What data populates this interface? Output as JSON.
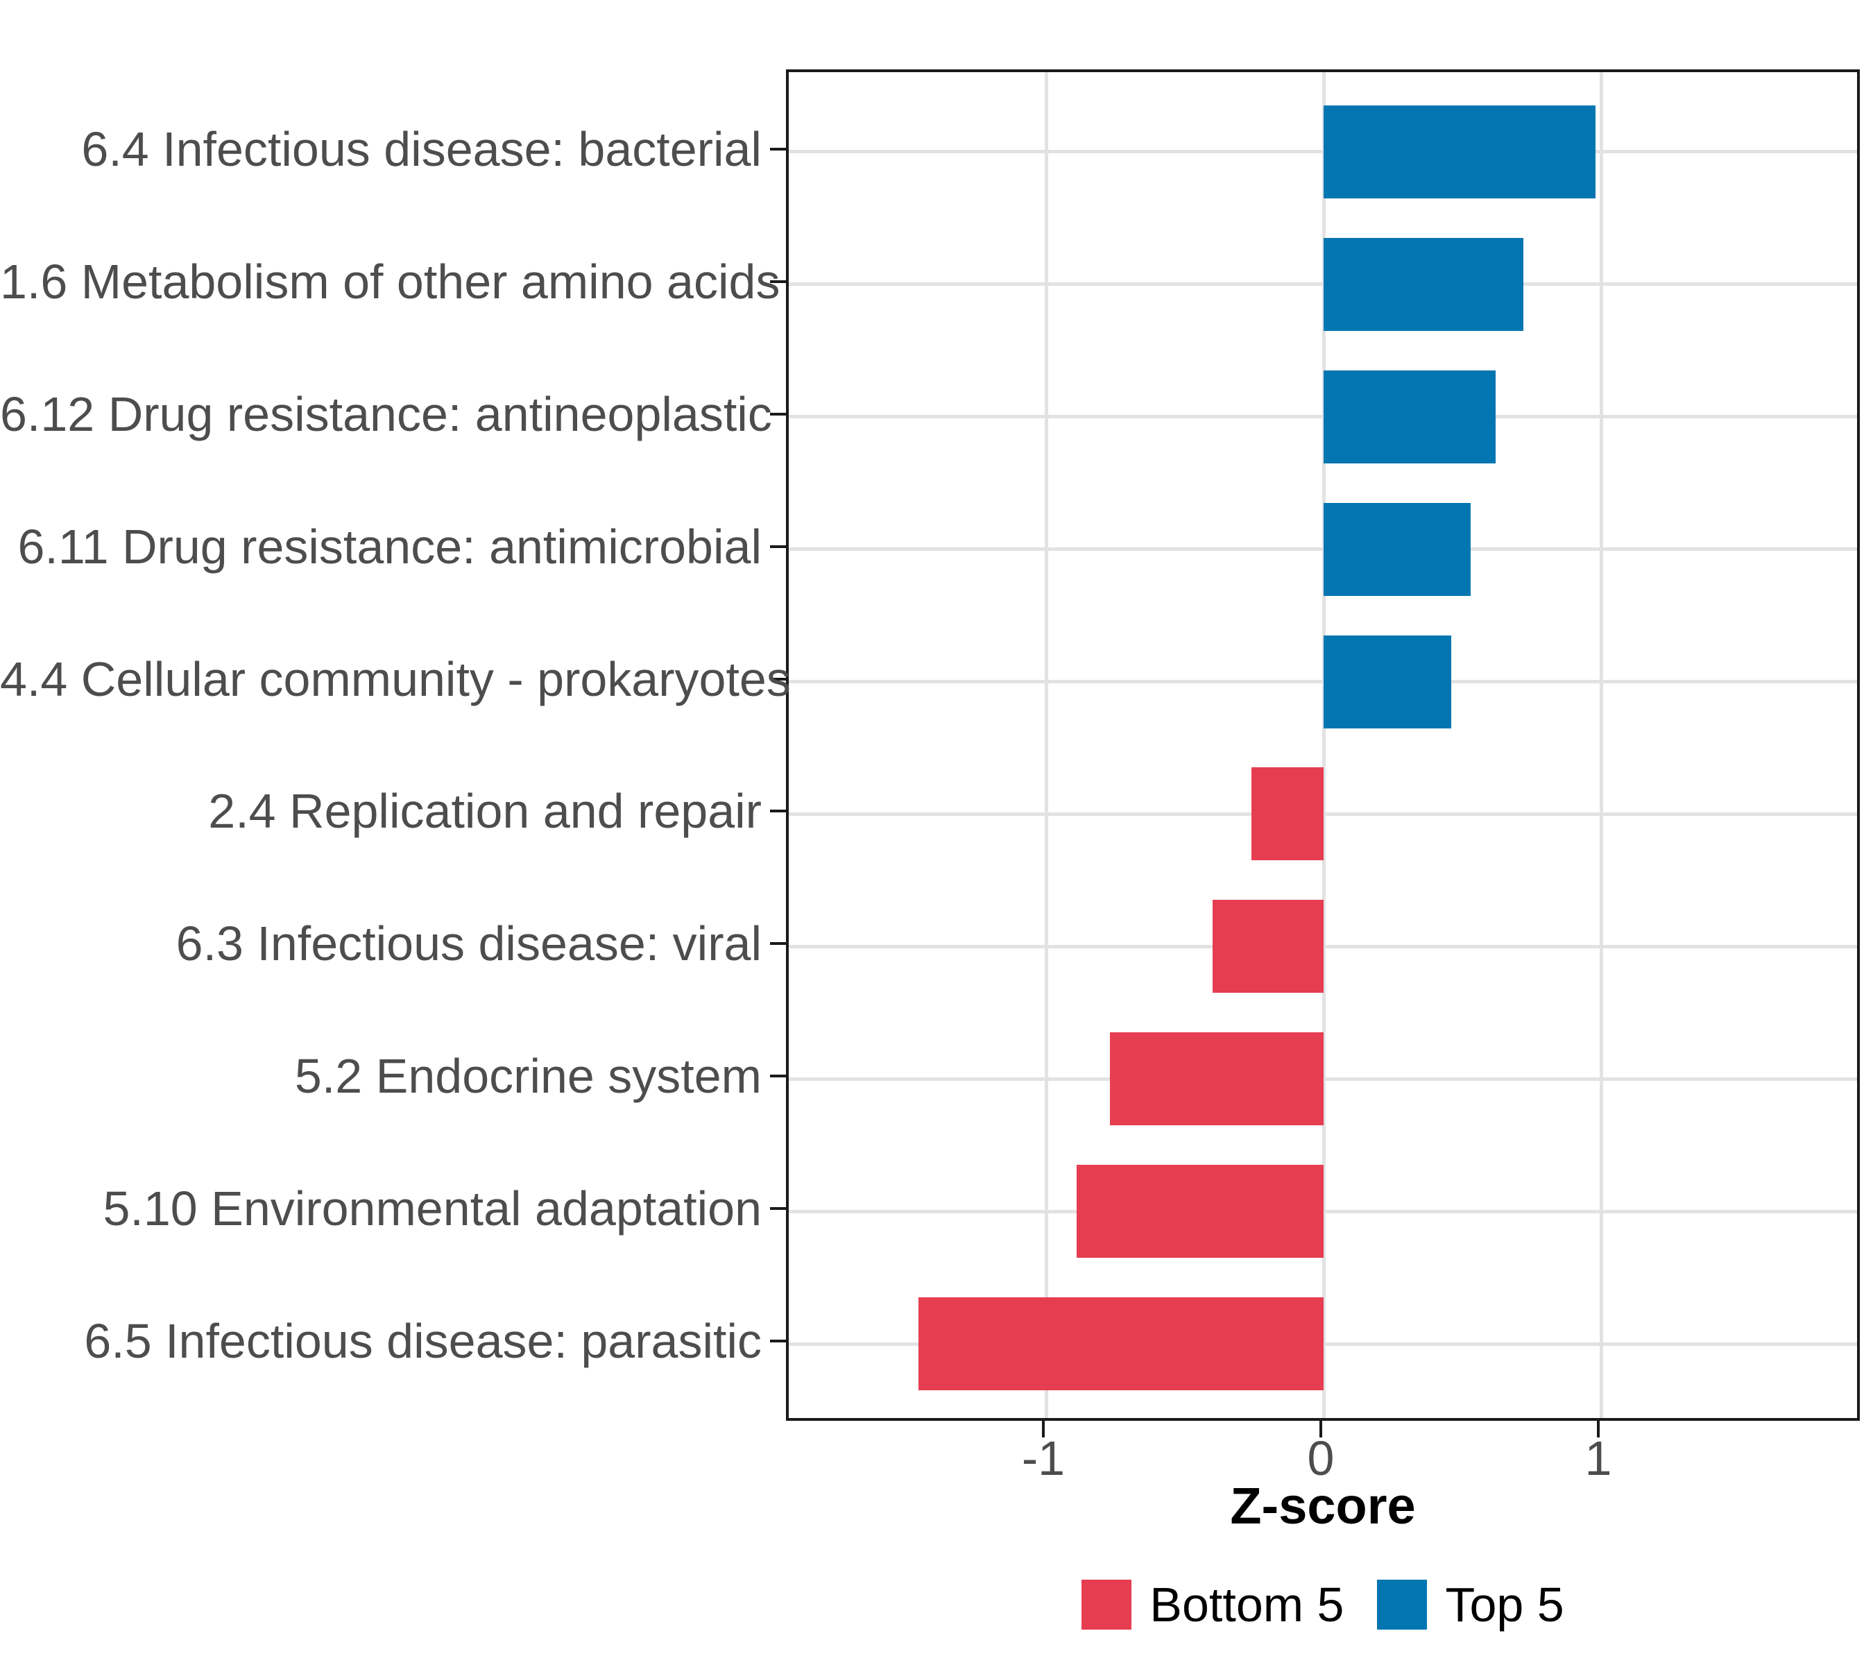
{
  "figure": {
    "background": "#ffffff"
  },
  "colors": {
    "bottom5": "#e63d50",
    "top5": "#0376b2",
    "gridline": "#e2e2e2",
    "axis_text": "#4d4d4d",
    "axis_line": "#1a1a1a",
    "title_text": "#000000"
  },
  "chart_data": {
    "type": "bar",
    "orientation": "horizontal",
    "title": "",
    "xlabel": "Z-score",
    "ylabel": "",
    "categories": [
      "6.4 Infectious disease: bacterial",
      "1.6 Metabolism of other amino acids",
      "6.12 Drug resistance: antineoplastic",
      "6.11 Drug resistance: antimicrobial",
      "4.4 Cellular community - prokaryotes",
      "2.4 Replication and repair",
      "6.3 Infectious disease: viral",
      "5.2 Endocrine system",
      "5.10 Environmental adaptation",
      "6.5 Infectious disease: parasitic"
    ],
    "values": [
      0.98,
      0.72,
      0.62,
      0.53,
      0.46,
      -0.26,
      -0.4,
      -0.77,
      -0.89,
      -1.46
    ],
    "groups": [
      "Top 5",
      "Top 5",
      "Top 5",
      "Top 5",
      "Top 5",
      "Bottom 5",
      "Bottom 5",
      "Bottom 5",
      "Bottom 5",
      "Bottom 5"
    ],
    "xticks": [
      -1,
      0,
      1
    ],
    "xtick_labels": [
      "-1",
      "0",
      "1"
    ],
    "xlim": [
      -1.93,
      1.94
    ],
    "grid": "major-only",
    "legend": {
      "position": "bottom",
      "entries": [
        {
          "label": "Bottom 5",
          "group": "Bottom 5"
        },
        {
          "label": "Top 5",
          "group": "Top 5"
        }
      ]
    }
  }
}
